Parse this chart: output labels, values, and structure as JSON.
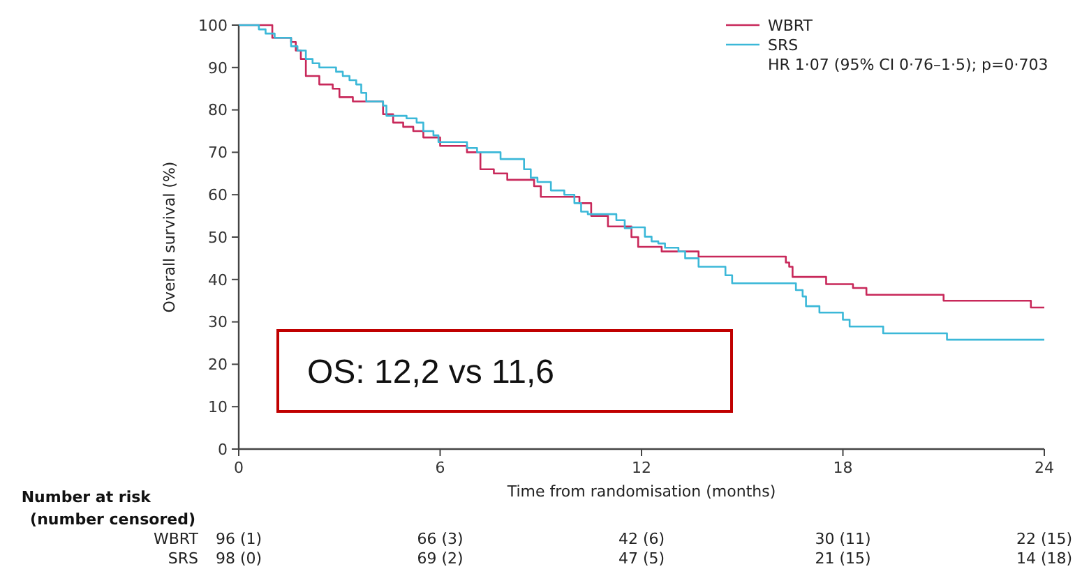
{
  "chart_data": {
    "type": "step",
    "xlabel": "Time from randomisation (months)",
    "ylabel": "Overall survival (%)",
    "xlim": [
      0,
      24
    ],
    "ylim": [
      0,
      100
    ],
    "xticks": [
      0,
      6,
      12,
      18,
      24
    ],
    "yticks": [
      0,
      10,
      20,
      30,
      40,
      50,
      60,
      70,
      80,
      90,
      100
    ],
    "grid": false,
    "legend": "top right",
    "marker": "none",
    "line_style": "solid",
    "series": [
      {
        "name": "WBRT",
        "color": "#c8285a",
        "x": [
          0,
          1.0,
          1.56,
          1.7,
          1.85,
          2.0,
          2.4,
          2.8,
          3.0,
          3.4,
          4.3,
          4.6,
          4.9,
          5.2,
          5.5,
          6.0,
          6.8,
          7.2,
          7.6,
          8.0,
          8.8,
          9.0,
          10.15,
          10.5,
          11.0,
          11.7,
          11.9,
          12.6,
          13.7,
          16.3,
          16.4,
          16.5,
          17.5,
          18.3,
          18.7,
          21.0,
          23.6,
          24
        ],
        "values": [
          100,
          97,
          96,
          94,
          92,
          88,
          86,
          85,
          83,
          82,
          79,
          77,
          76,
          75,
          73.5,
          71.5,
          70,
          66,
          65,
          63.5,
          62,
          59.5,
          58,
          55,
          52.5,
          50,
          47.7,
          46.6,
          45.4,
          44,
          43,
          40.6,
          38.9,
          38,
          36.4,
          35,
          33.4,
          33.4
        ]
      },
      {
        "name": "SRS",
        "color": "#3bb8d8",
        "x": [
          0,
          0.6,
          0.8,
          1.07,
          1.56,
          1.75,
          2.0,
          2.2,
          2.4,
          2.9,
          3.1,
          3.3,
          3.5,
          3.65,
          3.8,
          4.3,
          4.4,
          5.0,
          5.3,
          5.5,
          5.8,
          5.95,
          6.8,
          7.1,
          7.8,
          8.5,
          8.7,
          8.9,
          9.3,
          9.7,
          10.0,
          10.2,
          10.4,
          11.25,
          11.5,
          11.7,
          12.1,
          12.3,
          12.5,
          12.7,
          13.1,
          13.3,
          13.7,
          14.5,
          14.7,
          16.6,
          16.8,
          16.9,
          17.3,
          18.0,
          18.2,
          19.2,
          21.1,
          24
        ],
        "values": [
          100,
          99,
          98,
          97,
          95,
          94,
          92,
          91,
          90,
          89,
          88,
          87,
          86,
          84,
          82,
          81,
          78.6,
          78,
          77,
          75,
          74,
          72.4,
          71,
          70,
          68.4,
          66,
          64,
          63,
          61,
          60,
          58,
          56,
          55.4,
          54,
          52.1,
          52.3,
          50.1,
          49,
          48.5,
          47.5,
          46.6,
          45,
          43,
          41,
          39.1,
          37.5,
          36,
          33.7,
          32.2,
          30.5,
          28.9,
          27.3,
          25.8,
          25.8
        ]
      }
    ],
    "annotations": [
      "HR 1·07 (95% CI 0·76–1·5); p=0·703",
      "OS: 12,2 vs 11,6",
      "Number at risk",
      "(number censored)",
      "WBRT",
      "96 (1)",
      "66 (3)",
      "42 (6)",
      "30 (11)",
      "22 (15)",
      "SRS",
      "98 (0)",
      "69 (2)",
      "47 (5)",
      "21 (15)",
      "14 (18)"
    ]
  }
}
